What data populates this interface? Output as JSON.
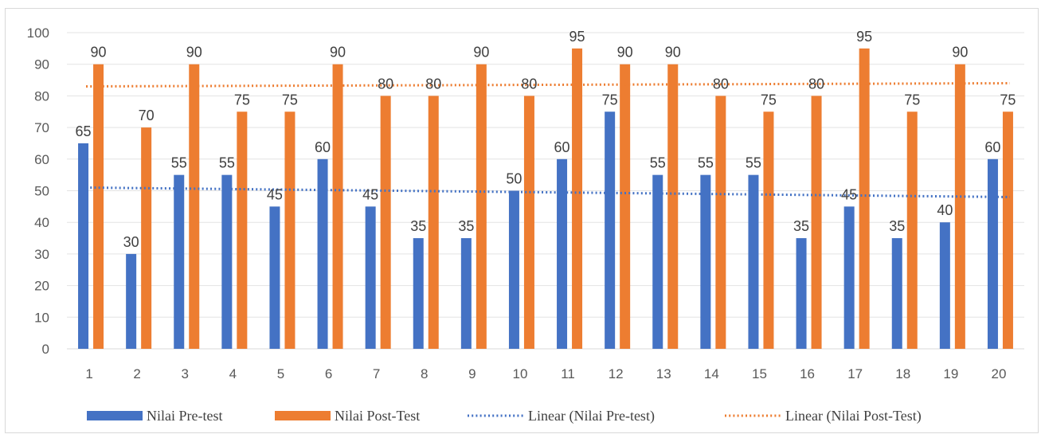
{
  "chart_data": {
    "type": "bar",
    "categories": [
      "1",
      "2",
      "3",
      "4",
      "5",
      "6",
      "7",
      "8",
      "9",
      "10",
      "11",
      "12",
      "13",
      "14",
      "15",
      "16",
      "17",
      "18",
      "19",
      "20"
    ],
    "series": [
      {
        "name": "Nilai Pre-test",
        "color": "#4472c4",
        "values": [
          65,
          30,
          55,
          55,
          45,
          60,
          45,
          35,
          35,
          50,
          60,
          75,
          55,
          55,
          55,
          35,
          45,
          35,
          40,
          60
        ]
      },
      {
        "name": "Nilai Post-Test",
        "color": "#ed7d31",
        "values": [
          90,
          70,
          90,
          75,
          75,
          90,
          80,
          80,
          90,
          80,
          95,
          90,
          90,
          80,
          75,
          80,
          95,
          75,
          90,
          75
        ]
      }
    ],
    "trendlines": [
      {
        "name": "Linear (Nilai Pre-test)",
        "type": "linear",
        "color": "#4472c4",
        "start": 51,
        "end": 48
      },
      {
        "name": "Linear (Nilai Post-Test)",
        "type": "linear",
        "color": "#ed7d31",
        "start": 83,
        "end": 84
      }
    ],
    "ylim": [
      0,
      100
    ],
    "yticks": [
      0,
      10,
      20,
      30,
      40,
      50,
      60,
      70,
      80,
      90,
      100
    ],
    "grid": true,
    "legend": "bottom",
    "title": "",
    "xlabel": "",
    "ylabel": ""
  }
}
